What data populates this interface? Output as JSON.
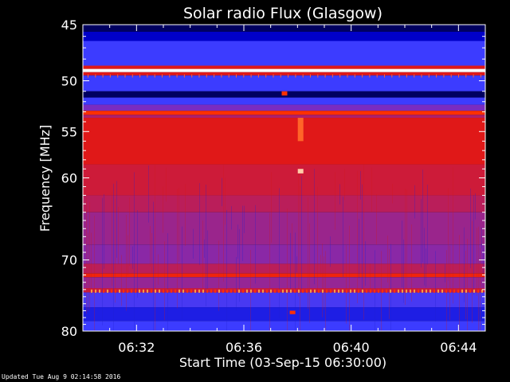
{
  "chart_data": {
    "type": "heatmap",
    "title": "Solar radio Flux (Glasgow)",
    "xlabel": "Start Time (03-Sep-15 06:30:00)",
    "ylabel": "Frequency [MHz]",
    "xlim_minutes": [
      0,
      15
    ],
    "ylim_mhz": [
      45,
      80
    ],
    "y_scale": "log",
    "y_inverted": true,
    "x_ticks": [
      {
        "minute": 2,
        "label": "06:32"
      },
      {
        "minute": 6,
        "label": "06:36"
      },
      {
        "minute": 10,
        "label": "06:40"
      },
      {
        "minute": 14,
        "label": "06:44"
      }
    ],
    "y_ticks": [
      {
        "mhz": 45,
        "label": "45"
      },
      {
        "mhz": 50,
        "label": "50"
      },
      {
        "mhz": 55,
        "label": "55"
      },
      {
        "mhz": 60,
        "label": "60"
      },
      {
        "mhz": 70,
        "label": "70"
      },
      {
        "mhz": 80,
        "label": "80"
      }
    ],
    "colormap": [
      "#000060",
      "#0000c8",
      "#3c3cff",
      "#7a2cc0",
      "#b0206a",
      "#e01818",
      "#ff3000",
      "#ff9a50",
      "#ffffff"
    ],
    "bands": [
      {
        "from": 45.0,
        "to": 45.6,
        "level": 0
      },
      {
        "from": 45.6,
        "to": 46.4,
        "level": 1
      },
      {
        "from": 46.4,
        "to": 48.6,
        "level": 2
      },
      {
        "from": 48.6,
        "to": 48.9,
        "level": 5
      },
      {
        "from": 48.9,
        "to": 49.2,
        "level": 8
      },
      {
        "from": 49.2,
        "to": 49.5,
        "level": 5
      },
      {
        "from": 49.5,
        "to": 51.0,
        "level": 2
      },
      {
        "from": 51.0,
        "to": 51.6,
        "level": 0
      },
      {
        "from": 51.6,
        "to": 52.3,
        "level": 2
      },
      {
        "from": 52.3,
        "to": 52.9,
        "level": 3
      },
      {
        "from": 52.9,
        "to": 53.3,
        "level": 6
      },
      {
        "from": 53.3,
        "to": 53.6,
        "level": 4
      },
      {
        "from": 53.6,
        "to": 58.5,
        "level": 5
      },
      {
        "from": 58.5,
        "to": 62.0,
        "level": 4.6
      },
      {
        "from": 62.0,
        "to": 64.0,
        "level": 4.2
      },
      {
        "from": 64.0,
        "to": 68.0,
        "level": 3.6
      },
      {
        "from": 68.0,
        "to": 70.5,
        "level": 3.3
      },
      {
        "from": 70.5,
        "to": 71.8,
        "level": 4.2
      },
      {
        "from": 71.8,
        "to": 72.3,
        "level": 5.5
      },
      {
        "from": 72.3,
        "to": 73.8,
        "level": 3.5
      },
      {
        "from": 73.8,
        "to": 74.4,
        "level": 4.5
      },
      {
        "from": 74.4,
        "to": 76.5,
        "level": 2.2
      },
      {
        "from": 76.5,
        "to": 78.5,
        "level": 1.5
      },
      {
        "from": 78.5,
        "to": 80.0,
        "level": 2
      }
    ],
    "features": [
      {
        "minute": 8.1,
        "from": 53.6,
        "to": 56.0,
        "level": 6.5
      },
      {
        "minute": 8.1,
        "from": 59.0,
        "to": 59.5,
        "level": 7.5
      },
      {
        "minute": 7.5,
        "from": 51.0,
        "to": 51.4,
        "level": 6
      },
      {
        "minute": 7.8,
        "from": 77.0,
        "to": 77.5,
        "level": 6
      }
    ]
  },
  "footer": {
    "updated": "Updated Tue Aug  9 02:14:58 2016"
  }
}
